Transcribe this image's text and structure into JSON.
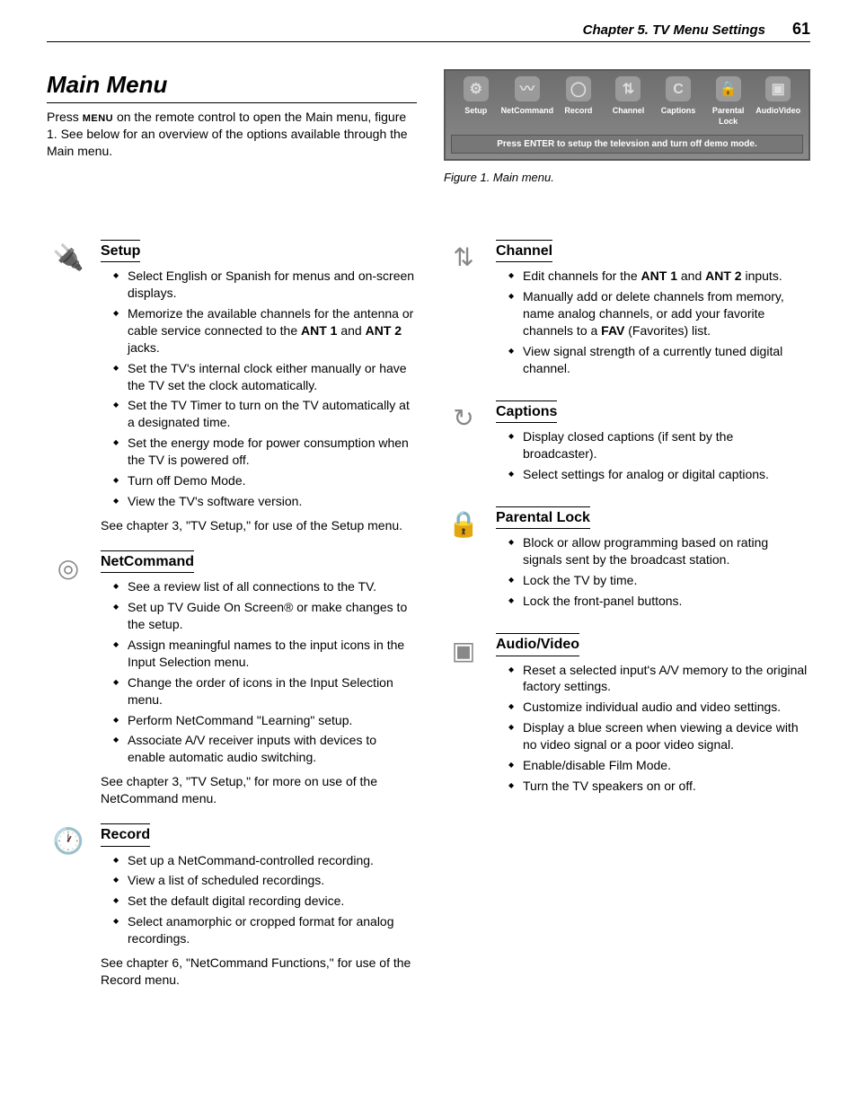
{
  "header": {
    "chapter": "Chapter 5. TV Menu Settings",
    "page_number": "61"
  },
  "main": {
    "title": "Main Menu",
    "intro_pre": "Press ",
    "intro_menu_word": "MENU",
    "intro_post": " on the remote control to open the Main menu, figure 1.  See below for an overview of the options available through the Main menu."
  },
  "figure": {
    "icons": [
      {
        "label": "Setup",
        "glyph": "⚙"
      },
      {
        "label": "NetCommand",
        "glyph": "〰"
      },
      {
        "label": "Record",
        "glyph": "◯"
      },
      {
        "label": "Channel",
        "glyph": "⇅"
      },
      {
        "label": "Captions",
        "glyph": "C"
      },
      {
        "label": "Parental Lock",
        "glyph": "🔒"
      },
      {
        "label": "AudioVideo",
        "glyph": "▣"
      }
    ],
    "bar_text": "Press ENTER to setup the televsion and turn off demo mode.",
    "caption": "Figure 1.  Main menu."
  },
  "left_sections": [
    {
      "icon_name": "plug-icon",
      "glyph": "🔌",
      "title": "Setup",
      "items": [
        "Select English or Spanish for menus and on-screen displays.",
        "Memorize the available channels for the antenna or cable service connected to the <b>ANT 1</b> and <b>ANT 2</b> jacks.",
        "Set the TV's internal clock either manually or have the TV set the clock automatically.",
        "Set the TV Timer to turn on the TV automatically at a designated time.",
        "Set the energy mode for power consumption when the TV is powered off.",
        "Turn off Demo Mode.",
        "View the TV's software version."
      ],
      "note": "See chapter 3, \"TV Setup,\" for use of the Setup menu."
    },
    {
      "icon_name": "netcommand-icon",
      "glyph": "◎",
      "title": "NetCommand",
      "items": [
        "See a review list of all connections to the TV.",
        "Set up TV Guide On Screen® or make changes to the setup.",
        "Assign meaningful names to the input icons in the Input Selection menu.",
        "Change the order of icons in the Input Selection menu.",
        "Perform NetCommand \"Learning\" setup.",
        "Associate A/V receiver inputs with devices to enable automatic audio switching."
      ],
      "note": "See chapter 3, \"TV Setup,\" for more on use of the NetCommand menu."
    },
    {
      "icon_name": "clock-icon",
      "glyph": "🕐",
      "title": "Record",
      "items": [
        "Set up a NetCommand-controlled recording.",
        "View a list of scheduled recordings.",
        "Set the default digital recording device.",
        "Select anamorphic or cropped format for analog recordings."
      ],
      "note": "See chapter 6, \"NetCommand Functions,\" for use of the Record menu."
    }
  ],
  "right_sections": [
    {
      "icon_name": "channel-icon",
      "glyph": "⇅",
      "title": "Channel",
      "items": [
        "Edit channels for the <b>ANT 1</b> and <b>ANT 2</b> inputs.",
        "Manually add or delete channels from memory, name analog channels, or add your favorite channels to a <b>FAV</b> (Favorites) list.",
        "View signal strength of a currently tuned digital channel."
      ],
      "note": ""
    },
    {
      "icon_name": "captions-icon",
      "glyph": "↻",
      "title": "Captions",
      "items": [
        "Display closed captions (if sent by the broadcaster).",
        "Select settings for analog or digital captions."
      ],
      "note": ""
    },
    {
      "icon_name": "lock-icon",
      "glyph": "🔒",
      "title": "Parental Lock",
      "items": [
        "Block or allow programming based on rating signals sent by the broadcast station.",
        "Lock the TV by time.",
        "Lock the front-panel buttons."
      ],
      "note": ""
    },
    {
      "icon_name": "av-icon",
      "glyph": "▣",
      "title": "Audio/Video",
      "items": [
        "Reset a selected input's A/V memory to the original factory settings.",
        "Customize individual audio and video settings.",
        "Display a blue screen when viewing a device with no video signal or a poor video signal.",
        "Enable/disable Film Mode.",
        "Turn the TV speakers on or off."
      ],
      "note": ""
    }
  ]
}
